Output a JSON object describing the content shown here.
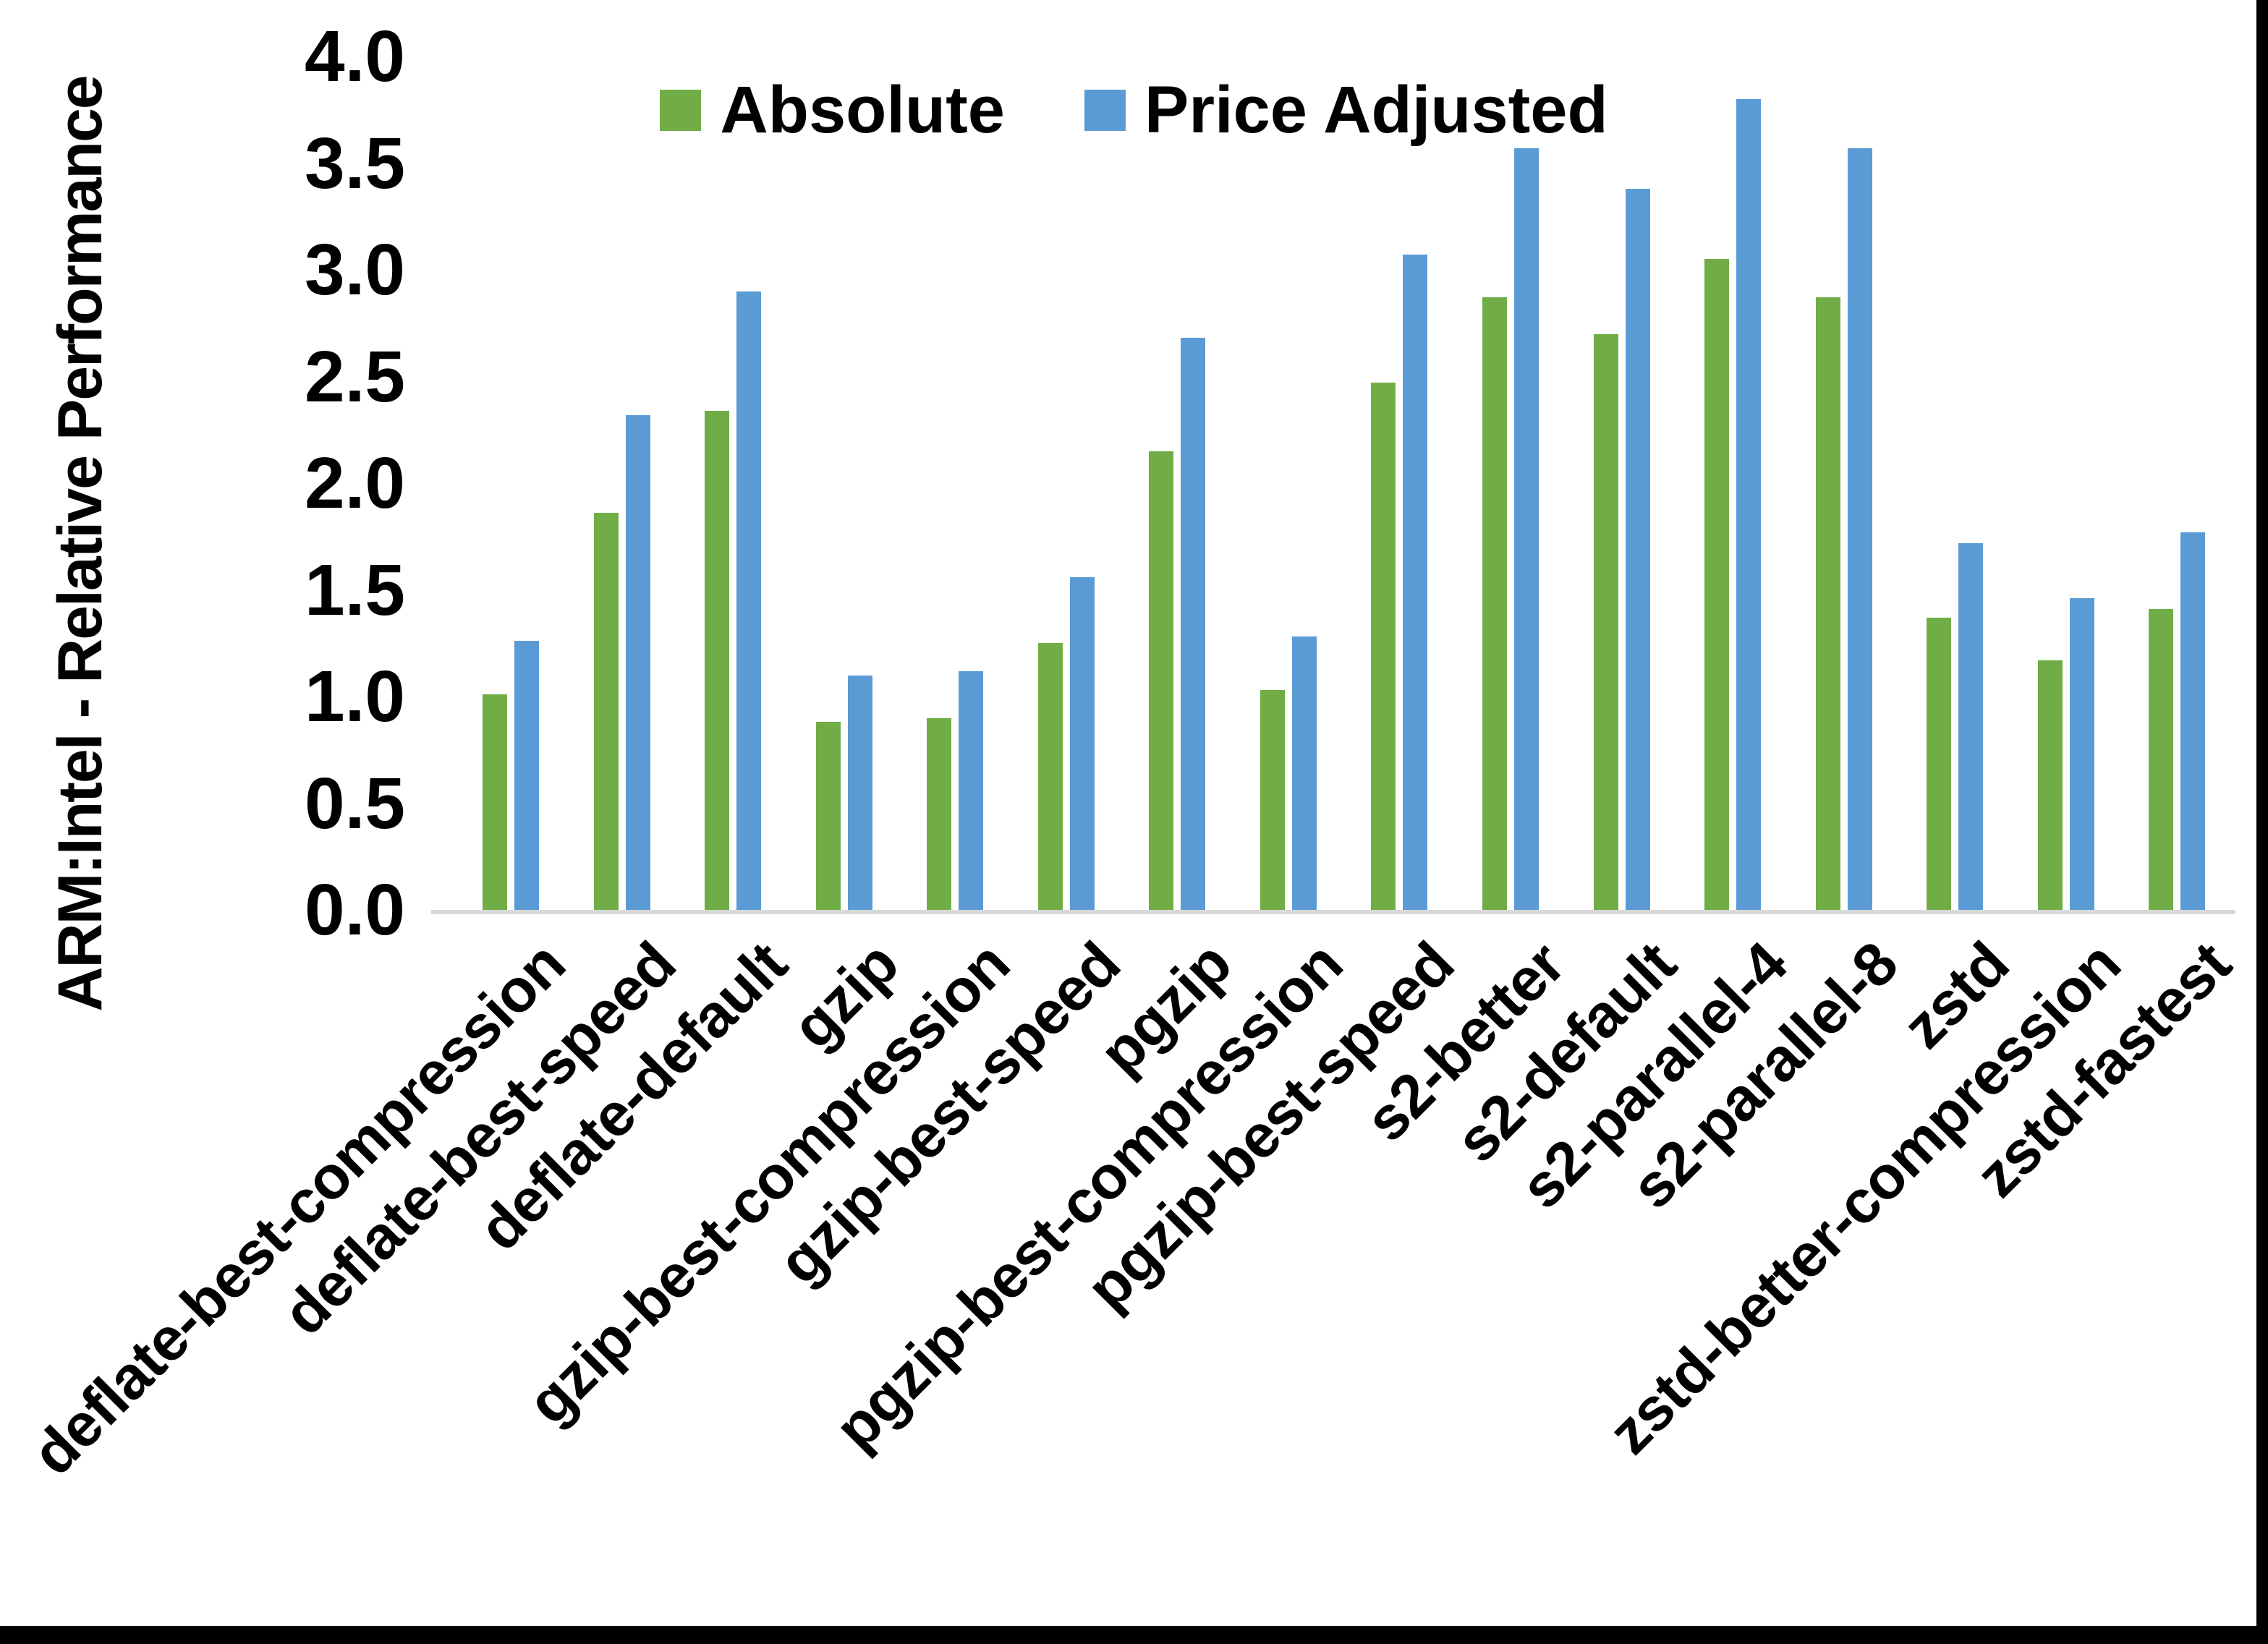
{
  "chart_data": {
    "type": "bar",
    "title": "",
    "xlabel": "",
    "ylabel": "ARM:Intel - Relative Performance",
    "ylim": [
      0.0,
      4.0
    ],
    "ytick_step": 0.5,
    "ytick_labels": [
      "0.0",
      "0.5",
      "1.0",
      "1.5",
      "2.0",
      "2.5",
      "3.0",
      "3.5",
      "4.0"
    ],
    "grid": false,
    "legend_position": "top-center",
    "categories": [
      "deflate-best-compression",
      "deflate-best-speed",
      "deflate-default",
      "gzip",
      "gzip-best-compression",
      "gzip-best-speed",
      "pgzip",
      "pgzip-best-compression",
      "pgzip-best-speed",
      "s2-better",
      "s2-default",
      "s2-parallel-4",
      "s2-parallel-8",
      "zstd",
      "zstd-better-compression",
      "zstd-fastest"
    ],
    "series": [
      {
        "name": "Absolute",
        "color": "#70AD47",
        "values": [
          1.01,
          1.86,
          2.34,
          0.88,
          0.9,
          1.25,
          2.15,
          1.03,
          2.47,
          2.87,
          2.7,
          3.05,
          2.87,
          1.37,
          1.17,
          1.41
        ]
      },
      {
        "name": "Price Adjusted",
        "color": "#5B9BD5",
        "values": [
          1.26,
          2.32,
          2.9,
          1.1,
          1.12,
          1.56,
          2.68,
          1.28,
          3.07,
          3.57,
          3.38,
          3.8,
          3.57,
          1.72,
          1.46,
          1.77
        ]
      }
    ]
  },
  "colors": {
    "background": "#FFFFFF",
    "text": "#000000",
    "axis_line": "#D9D9D9",
    "frame": "#000000"
  }
}
